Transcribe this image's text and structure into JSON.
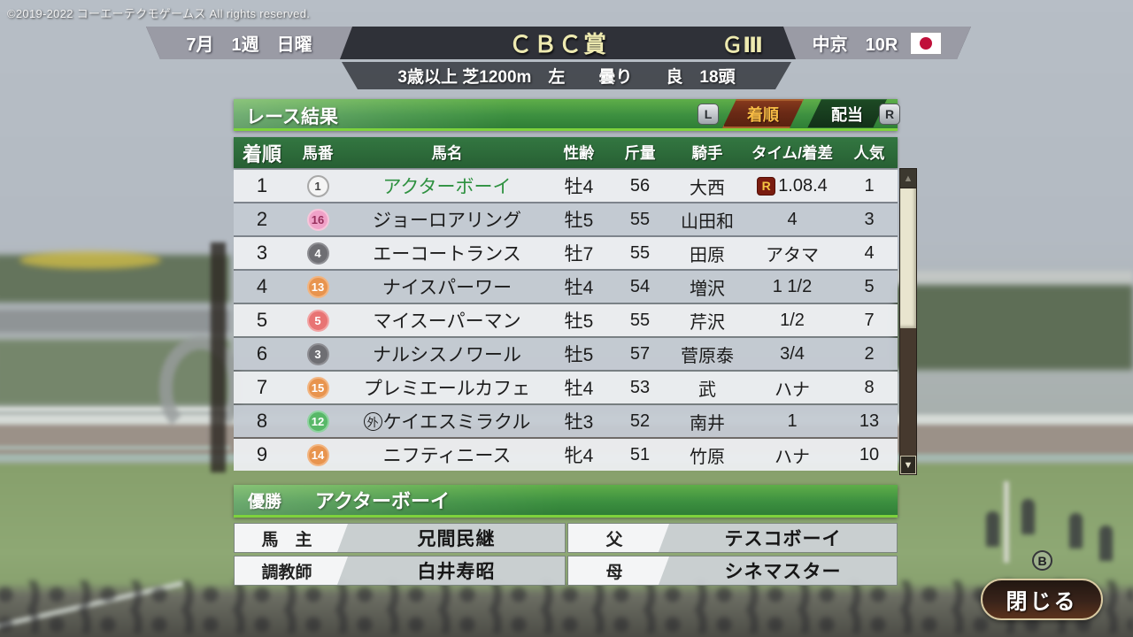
{
  "copyright": "©2019-2022 コーエーテクモゲームス All rights reserved.",
  "header": {
    "date": "7月　1週　日曜",
    "race_name": "ＣＢＣ賞",
    "grade": "ＧⅢ",
    "track": "中京　10R",
    "flag": "japan-flag",
    "conditions": "3歳以上 芝1200m　左　　曇り　　良　18頭"
  },
  "panel": {
    "title": "レース結果",
    "left_bumper": "L",
    "right_bumper": "R",
    "tabs": [
      {
        "label": "着順",
        "active": true
      },
      {
        "label": "配当",
        "active": false
      }
    ],
    "columns": [
      "着順",
      "馬番",
      "馬名",
      "性齢",
      "斤量",
      "騎手",
      "タイム/着差",
      "人気"
    ],
    "rows": [
      {
        "pos": "1",
        "num": "1",
        "name": "アクターボーイ",
        "name_color": "#2e9140",
        "sex_age": "牡4",
        "weight": "56",
        "jockey": "大西",
        "record_mark": "R",
        "time": "1.08.4",
        "pop": "1",
        "badge": {
          "bg": "#f5f5f5",
          "fg": "#444444",
          "border": "#a8a8a8"
        }
      },
      {
        "pos": "2",
        "num": "16",
        "name": "ジョーロアリング",
        "name_color": "#1c1c1c",
        "sex_age": "牡5",
        "weight": "55",
        "jockey": "山田和",
        "time": "4",
        "pop": "3",
        "badge": {
          "bg": "#f0a2c8",
          "fg": "#97305c",
          "border": "#f6c6da"
        }
      },
      {
        "pos": "3",
        "num": "4",
        "name": "エーコートランス",
        "name_color": "#1c1c1c",
        "sex_age": "牡7",
        "weight": "55",
        "jockey": "田原",
        "time": "アタマ",
        "pop": "4",
        "badge": {
          "bg": "#6e6e73",
          "fg": "#ffffff",
          "border": "#8d8d92"
        }
      },
      {
        "pos": "4",
        "num": "13",
        "name": "ナイスパーワー",
        "name_color": "#1c1c1c",
        "sex_age": "牡4",
        "weight": "54",
        "jockey": "増沢",
        "time": "1 1/2",
        "pop": "5",
        "badge": {
          "bg": "#e8944e",
          "fg": "#ffffff",
          "border": "#f2b581"
        }
      },
      {
        "pos": "5",
        "num": "5",
        "name": "マイスーパーマン",
        "name_color": "#1c1c1c",
        "sex_age": "牡5",
        "weight": "55",
        "jockey": "芹沢",
        "time": "1/2",
        "pop": "7",
        "badge": {
          "bg": "#e87474",
          "fg": "#ffffff",
          "border": "#f2a3a3"
        }
      },
      {
        "pos": "6",
        "num": "3",
        "name": "ナルシスノワール",
        "name_color": "#1c1c1c",
        "sex_age": "牡5",
        "weight": "57",
        "jockey": "菅原泰",
        "time": "3/4",
        "pop": "2",
        "badge": {
          "bg": "#6e6e73",
          "fg": "#ffffff",
          "border": "#8d8d92"
        }
      },
      {
        "pos": "7",
        "num": "15",
        "name": "プレミエールカフェ",
        "name_color": "#1c1c1c",
        "sex_age": "牡4",
        "weight": "53",
        "jockey": "武",
        "time": "ハナ",
        "pop": "8",
        "badge": {
          "bg": "#e8944e",
          "fg": "#ffffff",
          "border": "#f2b581"
        }
      },
      {
        "pos": "8",
        "num": "12",
        "name": "ケイエスミラクル",
        "name_prefix": "外",
        "name_color": "#1c1c1c",
        "sex_age": "牡3",
        "weight": "52",
        "jockey": "南井",
        "time": "1",
        "pop": "13",
        "badge": {
          "bg": "#58b868",
          "fg": "#ffffff",
          "border": "#8fd3a0"
        }
      },
      {
        "pos": "9",
        "num": "14",
        "name": "ニフティニース",
        "name_color": "#1c1c1c",
        "sex_age": "牝4",
        "weight": "51",
        "jockey": "竹原",
        "time": "ハナ",
        "pop": "10",
        "badge": {
          "bg": "#e8944e",
          "fg": "#ffffff",
          "border": "#f2b581"
        }
      }
    ],
    "scrollbar": {
      "up_arrow": "▲",
      "down_arrow": "▼"
    }
  },
  "winner": {
    "label": "優勝",
    "name": "アクターボーイ"
  },
  "details": [
    {
      "label": "馬　主",
      "value": "兄間民継"
    },
    {
      "label": "父",
      "value": "テスコボーイ"
    },
    {
      "label": "調教師",
      "value": "白井寿昭"
    },
    {
      "label": "母",
      "value": "シネマスター"
    }
  ],
  "close_button": {
    "label": "閉じる",
    "key": "B"
  },
  "theme": {
    "panel_green": "#3d9040",
    "panel_edge_green": "#7ed23c",
    "table_header_green": "#2b6b38",
    "active_tab_bg": "#6b2a16",
    "active_tab_text": "#f6bb45",
    "record_badge_bg": "#7a1c10",
    "record_badge_text": "#f5c542",
    "winner_name_green": "#2e9140",
    "flag_red": "#c0103a",
    "close_button_border": "#d9caa2"
  }
}
